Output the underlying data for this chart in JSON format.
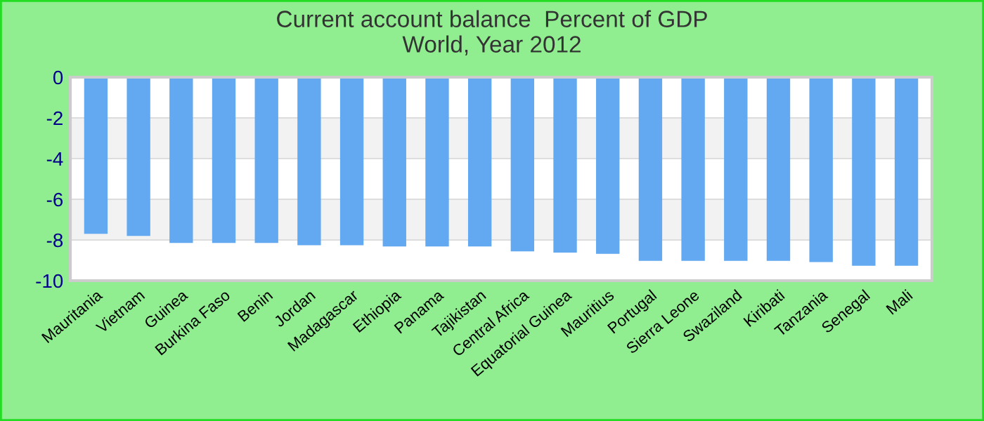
{
  "chart_data": {
    "type": "bar",
    "title": "Current account balance  Percent of GDP",
    "subtitle": "World, Year 2012",
    "categories": [
      "Mauritania",
      "Vietnam",
      "Guinea",
      "Burkina Faso",
      "Benin",
      "Jordan",
      "Madagascar",
      "Ethiopia",
      "Panama",
      "Tajikistan",
      "Central Africa",
      "Equatorial Guinea",
      "Mauritius",
      "Portugal",
      "Sierra Leone",
      "Swaziland",
      "Kiribati",
      "Tanzania",
      "Senegal",
      "Mali"
    ],
    "values": [
      -7.7,
      -7.8,
      -8.15,
      -8.15,
      -8.15,
      -8.26,
      -8.26,
      -8.32,
      -8.32,
      -8.32,
      -8.56,
      -8.62,
      -8.68,
      -9.03,
      -9.03,
      -9.03,
      -9.03,
      -9.09,
      -9.27,
      -9.27
    ],
    "color": "#62a9f2",
    "ylim": [
      -10,
      0
    ],
    "yticks": [
      -10,
      -8,
      -6,
      -4,
      -2,
      0
    ],
    "grid": "y"
  }
}
